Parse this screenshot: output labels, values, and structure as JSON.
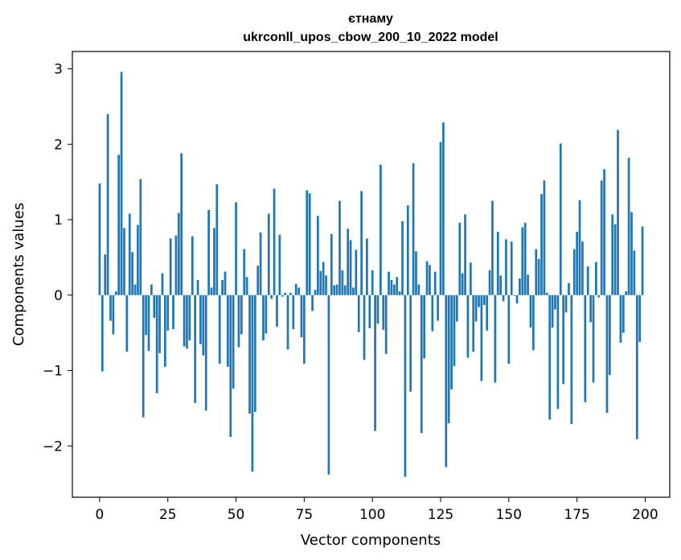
{
  "chart_data": {
    "type": "bar",
    "title_line1": "єтнаму",
    "title_line2": "ukrconll_upos_cbow_200_10_2022 model",
    "xlabel": "Vector components",
    "ylabel": "Components values",
    "xlim": [
      -10,
      209
    ],
    "ylim": [
      -2.68,
      3.23
    ],
    "xticks": [
      0,
      25,
      50,
      75,
      100,
      125,
      150,
      175,
      200
    ],
    "xtick_labels": [
      "0",
      "25",
      "50",
      "75",
      "100",
      "125",
      "150",
      "175",
      "200"
    ],
    "yticks": [
      -2,
      -1,
      0,
      1,
      2,
      3
    ],
    "ytick_labels": [
      "−2",
      "−1",
      "0",
      "1",
      "2",
      "3"
    ],
    "bar_color": "#1f77b4",
    "values": [
      1.48,
      -1.01,
      0.54,
      2.4,
      -0.34,
      -0.52,
      0.05,
      1.86,
      2.96,
      0.89,
      -0.75,
      1.08,
      0.57,
      0.14,
      0.93,
      1.54,
      -1.62,
      -0.53,
      -0.74,
      0.14,
      -0.3,
      -1.3,
      -0.77,
      0.29,
      -0.95,
      -0.47,
      0.75,
      -0.45,
      0.79,
      1.09,
      1.88,
      -0.68,
      -0.71,
      -0.6,
      0.78,
      -1.43,
      0.2,
      -0.65,
      -0.8,
      -1.53,
      1.13,
      0.1,
      0.89,
      1.47,
      -0.91,
      0.2,
      0.31,
      -0.95,
      -1.88,
      -1.24,
      1.23,
      -0.69,
      -0.52,
      0.61,
      0.24,
      -1.57,
      -2.34,
      -1.55,
      0.39,
      0.83,
      -0.6,
      -0.51,
      1.08,
      -0.05,
      1.41,
      -0.42,
      0.8,
      -0.02,
      0.03,
      -0.72,
      0.03,
      -0.45,
      0.15,
      0.1,
      -0.56,
      -0.91,
      1.39,
      1.35,
      -0.21,
      0.07,
      1.05,
      0.32,
      0.44,
      0.26,
      -2.38,
      0.81,
      0.13,
      0.14,
      1.25,
      0.33,
      0.13,
      0.88,
      0.73,
      0.1,
      0.6,
      -0.49,
      1.38,
      -0.86,
      0.75,
      -0.44,
      0.33,
      -1.8,
      -0.38,
      1.73,
      -0.46,
      -0.78,
      0.31,
      0.2,
      0.14,
      0.24,
      0.05,
      0.98,
      -2.41,
      1.19,
      -1.28,
      1.75,
      0.58,
      0.14,
      -1.83,
      -0.84,
      0.45,
      0.4,
      -0.48,
      0.31,
      -0.34,
      2.03,
      2.29,
      -2.28,
      -1.7,
      -1.25,
      -0.94,
      -0.35,
      0.96,
      0.29,
      1.07,
      -0.83,
      0.43,
      -0.75,
      -0.35,
      -0.16,
      -1.14,
      -0.13,
      -0.47,
      0.33,
      1.25,
      -1.16,
      0.84,
      0.26,
      -0.08,
      0.74,
      -0.91,
      0.71,
      -0.01,
      -0.11,
      0.22,
      0.9,
      0.96,
      0.27,
      -0.43,
      -0.73,
      0.61,
      0.48,
      1.34,
      1.52,
      0.03,
      -1.65,
      -0.43,
      -0.19,
      -1.51,
      2.01,
      -1.18,
      -0.23,
      0.16,
      -1.71,
      0.61,
      0.84,
      1.26,
      0.71,
      -1.42,
      0.38,
      -0.36,
      -1.16,
      0.44,
      -0.03,
      1.52,
      1.67,
      -1.56,
      -1.06,
      1.07,
      0.94,
      2.19,
      -0.63,
      -0.5,
      0.05,
      1.82,
      1.1,
      0.59,
      -1.91,
      -0.62,
      0.91
    ]
  }
}
